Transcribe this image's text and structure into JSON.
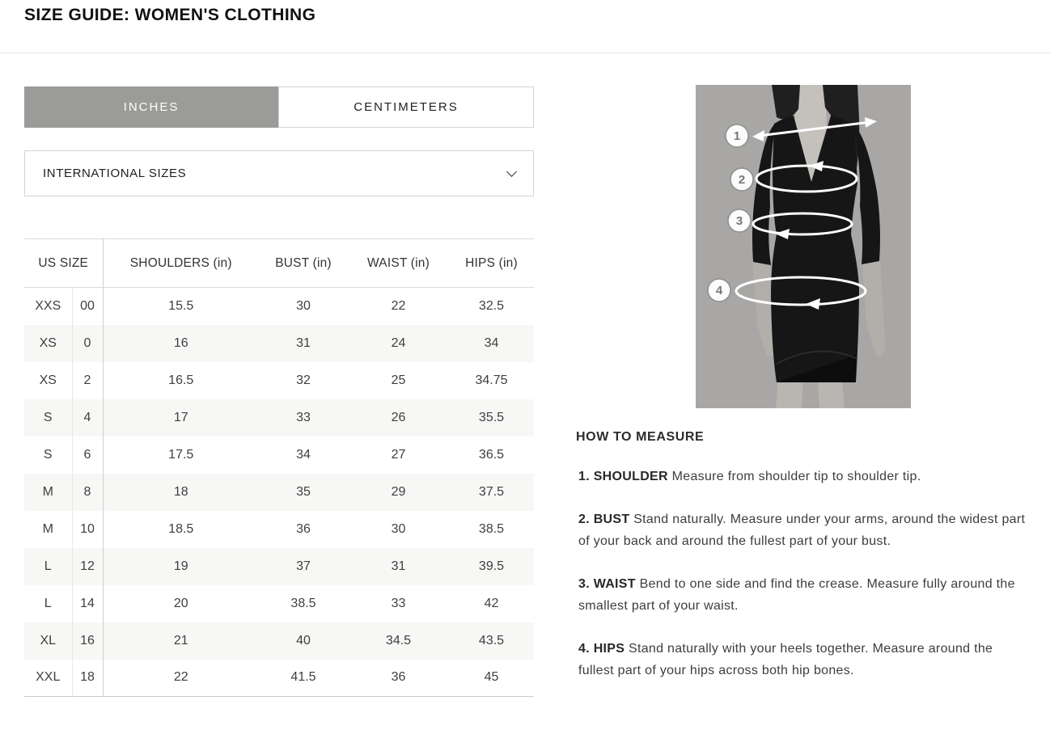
{
  "page": {
    "title": "SIZE GUIDE: WOMEN'S CLOTHING"
  },
  "unit_tabs": {
    "inches_label": "INCHES",
    "centimeters_label": "CENTIMETERS",
    "active_tab": "INCHES"
  },
  "size_select": {
    "value": "INTERNATIONAL SIZES",
    "icon": "chevron-down"
  },
  "size_table": {
    "headers": {
      "us_size": "US SIZE",
      "shoulders": "SHOULDERS (in)",
      "bust": "BUST (in)",
      "waist": "WAIST (in)",
      "hips": "HIPS (in)"
    },
    "rows": [
      {
        "size": "XXS",
        "us": "00",
        "shoulders": "15.5",
        "bust": "30",
        "waist": "22",
        "hips": "32.5"
      },
      {
        "size": "XS",
        "us": "0",
        "shoulders": "16",
        "bust": "31",
        "waist": "24",
        "hips": "34"
      },
      {
        "size": "XS",
        "us": "2",
        "shoulders": "16.5",
        "bust": "32",
        "waist": "25",
        "hips": "34.75"
      },
      {
        "size": "S",
        "us": "4",
        "shoulders": "17",
        "bust": "33",
        "waist": "26",
        "hips": "35.5"
      },
      {
        "size": "S",
        "us": "6",
        "shoulders": "17.5",
        "bust": "34",
        "waist": "27",
        "hips": "36.5"
      },
      {
        "size": "M",
        "us": "8",
        "shoulders": "18",
        "bust": "35",
        "waist": "29",
        "hips": "37.5"
      },
      {
        "size": "M",
        "us": "10",
        "shoulders": "18.5",
        "bust": "36",
        "waist": "30",
        "hips": "38.5"
      },
      {
        "size": "L",
        "us": "12",
        "shoulders": "19",
        "bust": "37",
        "waist": "31",
        "hips": "39.5"
      },
      {
        "size": "L",
        "us": "14",
        "shoulders": "20",
        "bust": "38.5",
        "waist": "33",
        "hips": "42"
      },
      {
        "size": "XL",
        "us": "16",
        "shoulders": "21",
        "bust": "40",
        "waist": "34.5",
        "hips": "43.5"
      },
      {
        "size": "XXL",
        "us": "18",
        "shoulders": "22",
        "bust": "41.5",
        "waist": "36",
        "hips": "45"
      }
    ]
  },
  "measure_figure": {
    "markers": [
      "1",
      "2",
      "3",
      "4"
    ]
  },
  "how_to_measure": {
    "heading": "HOW TO MEASURE",
    "steps": [
      {
        "num": "1.",
        "label": "SHOULDER",
        "text": "Measure from shoulder tip to shoulder tip."
      },
      {
        "num": "2.",
        "label": "BUST",
        "text": " Stand naturally. Measure under your arms, around the widest part of your back and around the fullest part of your bust."
      },
      {
        "num": "3.",
        "label": "WAIST",
        "text": "Bend to one side and find the crease. Measure fully around the smallest part of your waist."
      },
      {
        "num": "4.",
        "label": "HIPS",
        "text": "Stand naturally with your heels together. Measure around the fullest part of your hips across both hip bones."
      }
    ]
  },
  "colors": {
    "tab_active_bg": "#9b9b99",
    "tab_active_text": "#ffffff",
    "alt_row_bg": "#f7f7f6",
    "border": "#d4d4d4",
    "body_text": "#3d3d3d"
  }
}
